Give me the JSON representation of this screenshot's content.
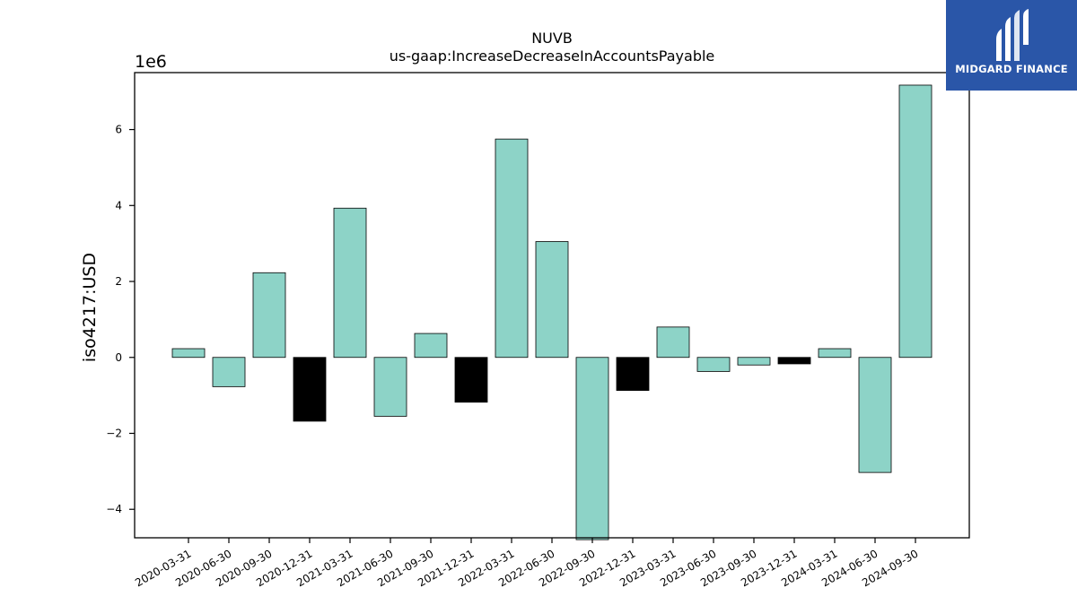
{
  "chart_data": {
    "type": "bar",
    "title": "NUVB",
    "subtitle": "us-gaap:IncreaseDecreaseInAccountsPayable",
    "ylabel": "iso4217:USD",
    "xlabel": "",
    "offset_label": "1e6",
    "ylim": [
      -4.75,
      7.5
    ],
    "yticks": [
      -4,
      -2,
      0,
      2,
      4,
      6
    ],
    "ytick_labels": [
      "−4",
      "−2",
      "0",
      "2",
      "4",
      "6"
    ],
    "categories": [
      "2020-03-31",
      "2020-06-30",
      "2020-09-30",
      "2020-12-31",
      "2021-03-31",
      "2021-06-30",
      "2021-09-30",
      "2021-12-31",
      "2022-03-31",
      "2022-06-30",
      "2022-09-30",
      "2022-12-31",
      "2023-03-31",
      "2023-06-30",
      "2023-09-30",
      "2023-12-31",
      "2024-03-31",
      "2024-06-30",
      "2024-09-30"
    ],
    "values": [
      0.23,
      -0.77,
      2.23,
      -1.68,
      3.93,
      -1.55,
      0.63,
      -1.18,
      5.75,
      3.05,
      -4.8,
      -0.87,
      0.8,
      -0.37,
      -0.2,
      -0.17,
      0.23,
      -3.03,
      7.17
    ],
    "bar_colors": [
      "#8dd3c7",
      "#8dd3c7",
      "#8dd3c7",
      "#000000",
      "#8dd3c7",
      "#8dd3c7",
      "#8dd3c7",
      "#000000",
      "#8dd3c7",
      "#8dd3c7",
      "#8dd3c7",
      "#000000",
      "#8dd3c7",
      "#8dd3c7",
      "#8dd3c7",
      "#000000",
      "#8dd3c7",
      "#8dd3c7",
      "#8dd3c7"
    ],
    "grid": false
  },
  "logo": {
    "text": "MIDGARD FINANCE",
    "background": "#2a56a8"
  }
}
